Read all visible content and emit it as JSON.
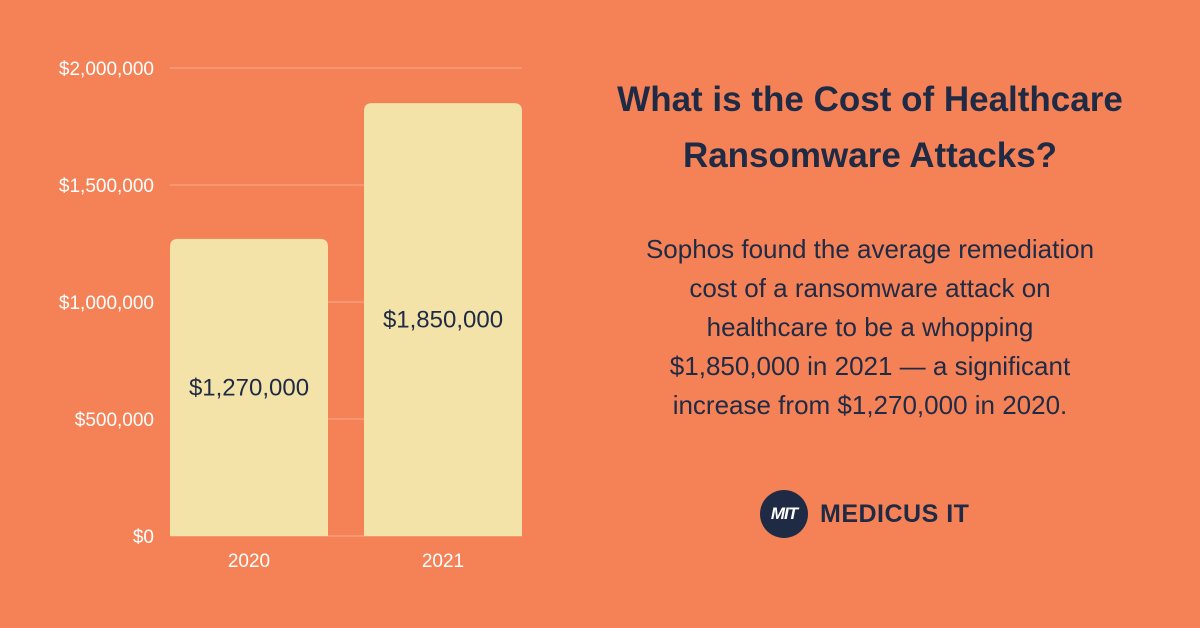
{
  "chart_data": {
    "type": "bar",
    "categories": [
      "2020",
      "2021"
    ],
    "values": [
      1270000,
      1850000
    ],
    "value_labels": [
      "$1,270,000",
      "$1,850,000"
    ],
    "ylim": [
      0,
      2000000
    ],
    "yticks": [
      0,
      500000,
      1000000,
      1500000,
      2000000
    ],
    "ytick_labels": [
      "$0",
      "$500,000",
      "$1,000,000",
      "$1,500,000",
      "$2,000,000"
    ],
    "grid": true,
    "bar_color": "#f3e3a8",
    "label_color": "#1f2a44"
  },
  "heading": {
    "line1": "What is the Cost of Healthcare",
    "line2": "Ransomware Attacks?"
  },
  "description": {
    "lines": [
      "Sophos found the average remediation",
      "cost of a ransomware attack on",
      "healthcare to be a whopping",
      "$1,850,000 in 2021 — a significant",
      "increase from $1,270,000 in 2020."
    ]
  },
  "brand": {
    "mark": "MIT",
    "name": "MEDICUS IT",
    "color": "#1f2a44"
  },
  "background_color": "#f58257"
}
